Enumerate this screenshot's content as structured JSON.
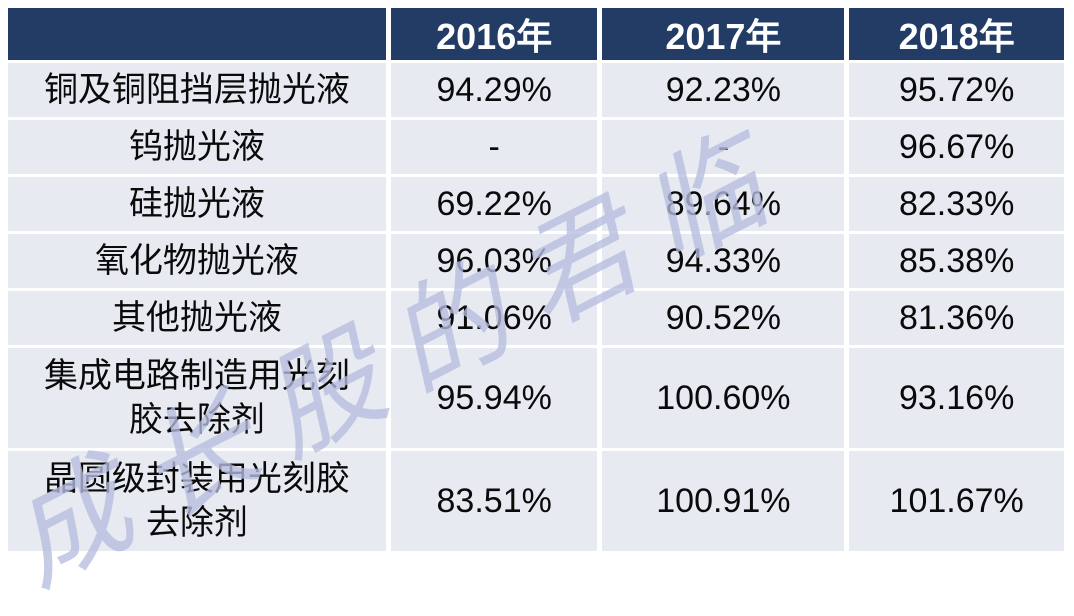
{
  "chart_data": {
    "type": "table",
    "columns": [
      "",
      "2016年",
      "2017年",
      "2018年"
    ],
    "rows": [
      {
        "label": "铜及铜阻挡层抛光液",
        "values": [
          "94.29%",
          "92.23%",
          "95.72%"
        ]
      },
      {
        "label": "钨抛光液",
        "values": [
          "-",
          "-",
          "96.67%"
        ]
      },
      {
        "label": "硅抛光液",
        "values": [
          "69.22%",
          "89.64%",
          "82.33%"
        ]
      },
      {
        "label": "氧化物抛光液",
        "values": [
          "96.03%",
          "94.33%",
          "85.38%"
        ]
      },
      {
        "label": "其他抛光液",
        "values": [
          "91.06%",
          "90.52%",
          "81.36%"
        ]
      },
      {
        "label": "集成电路制造用光刻\n胶去除剂",
        "values": [
          "95.94%",
          "100.60%",
          "93.16%"
        ]
      },
      {
        "label": "晶圆级封装用光刻胶\n去除剂",
        "values": [
          "83.51%",
          "100.91%",
          "101.67%"
        ]
      }
    ],
    "layout_hints": {
      "header_position": "top-row",
      "grid": "white-gaps-between-cells"
    }
  },
  "watermark": {
    "text": "成长股的君临"
  },
  "colors": {
    "header_bg": "#223C66",
    "header_text": "#FFFFFF",
    "row_bg": "#E8EAF2",
    "body_text": "#0A0A0A",
    "watermark": "#B7BDDF",
    "page_bg": "#FFFFFF"
  }
}
